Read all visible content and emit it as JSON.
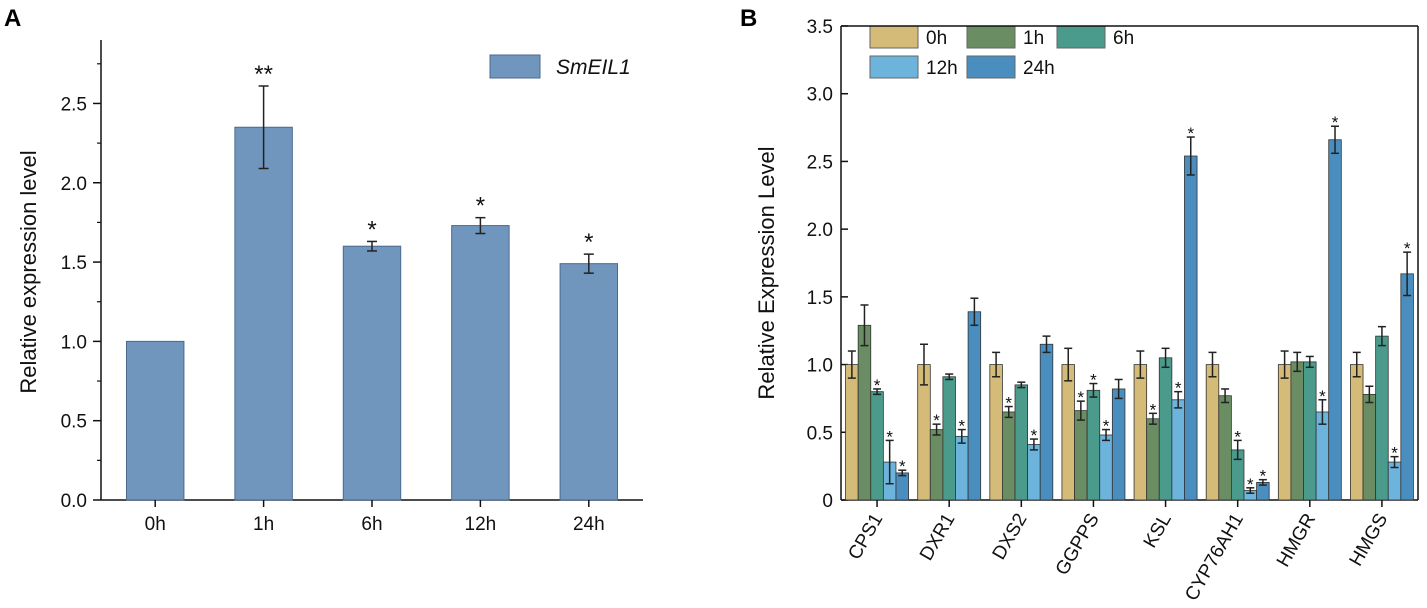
{
  "panels": {
    "a_label": "A",
    "b_label": "B"
  },
  "colors": {
    "a_bar": "#7096be",
    "b_series": [
      "#d4bb78",
      "#6a8d63",
      "#4a9b8b",
      "#6cb4dc",
      "#4a8ec0"
    ],
    "axis": "#111111"
  },
  "chart_data": [
    {
      "type": "bar",
      "panel": "A",
      "title": "",
      "xlabel": "",
      "ylabel": "Relative expression level",
      "categories": [
        "0h",
        "1h",
        "6h",
        "12h",
        "24h"
      ],
      "series": [
        {
          "name": "SmEIL1",
          "values": [
            1.0,
            2.35,
            1.6,
            1.73,
            1.49
          ],
          "errors": [
            0,
            0.26,
            0.03,
            0.05,
            0.06
          ]
        }
      ],
      "annotations": [
        "",
        "**",
        "*",
        "*",
        "*"
      ],
      "ylim": [
        0,
        2.9
      ],
      "yticks": [
        "0.0",
        "0.5",
        "1.0",
        "1.5",
        "2.0",
        "2.5"
      ],
      "legend": [
        "SmEIL1"
      ],
      "legend_position": "top-right"
    },
    {
      "type": "bar",
      "panel": "B",
      "title": "",
      "xlabel": "",
      "ylabel": "Relative Expression Level",
      "categories": [
        "CPS1",
        "DXR1",
        "DXS2",
        "GGPPS",
        "KSL",
        "CYP76AH1",
        "HMGR",
        "HMGS"
      ],
      "series": [
        {
          "name": "0h",
          "values": [
            1.0,
            1.0,
            1.0,
            1.0,
            1.0,
            1.0,
            1.0,
            1.0
          ],
          "errors": [
            0.1,
            0.15,
            0.09,
            0.12,
            0.1,
            0.09,
            0.1,
            0.09
          ]
        },
        {
          "name": "1h",
          "values": [
            1.29,
            0.52,
            0.65,
            0.66,
            0.6,
            0.77,
            1.02,
            0.78
          ],
          "errors": [
            0.15,
            0.04,
            0.04,
            0.07,
            0.04,
            0.05,
            0.07,
            0.06
          ]
        },
        {
          "name": "6h",
          "values": [
            0.8,
            0.91,
            0.85,
            0.81,
            1.05,
            0.37,
            1.02,
            1.21
          ],
          "errors": [
            0.02,
            0.02,
            0.02,
            0.05,
            0.07,
            0.07,
            0.04,
            0.07
          ]
        },
        {
          "name": "12h",
          "values": [
            0.28,
            0.47,
            0.41,
            0.48,
            0.74,
            0.07,
            0.65,
            0.28
          ],
          "errors": [
            0.16,
            0.05,
            0.04,
            0.04,
            0.06,
            0.02,
            0.09,
            0.04
          ]
        },
        {
          "name": "24h",
          "values": [
            0.2,
            1.39,
            1.15,
            0.82,
            2.54,
            0.13,
            2.66,
            1.67
          ],
          "errors": [
            0.02,
            0.1,
            0.06,
            0.07,
            0.14,
            0.02,
            0.1,
            0.16
          ]
        }
      ],
      "annotations": [
        [
          "",
          "",
          "*",
          "*",
          "*"
        ],
        [
          "",
          "*",
          "",
          "*",
          ""
        ],
        [
          "",
          "*",
          "",
          "*",
          ""
        ],
        [
          "",
          "*",
          "*",
          "*",
          ""
        ],
        [
          "",
          "*",
          "",
          "*",
          "*"
        ],
        [
          "",
          "",
          "*",
          "*",
          "*"
        ],
        [
          "",
          "",
          "",
          "*",
          "*"
        ],
        [
          "",
          "",
          "",
          "*",
          "*"
        ]
      ],
      "ylim": [
        0,
        3.5
      ],
      "yticks": [
        "0",
        "0.5",
        "1.0",
        "1.5",
        "2.0",
        "2.5",
        "3.0",
        "3.5"
      ],
      "legend": [
        "0h",
        "1h",
        "6h",
        "12h",
        "24h"
      ],
      "legend_position": "top-left"
    }
  ]
}
